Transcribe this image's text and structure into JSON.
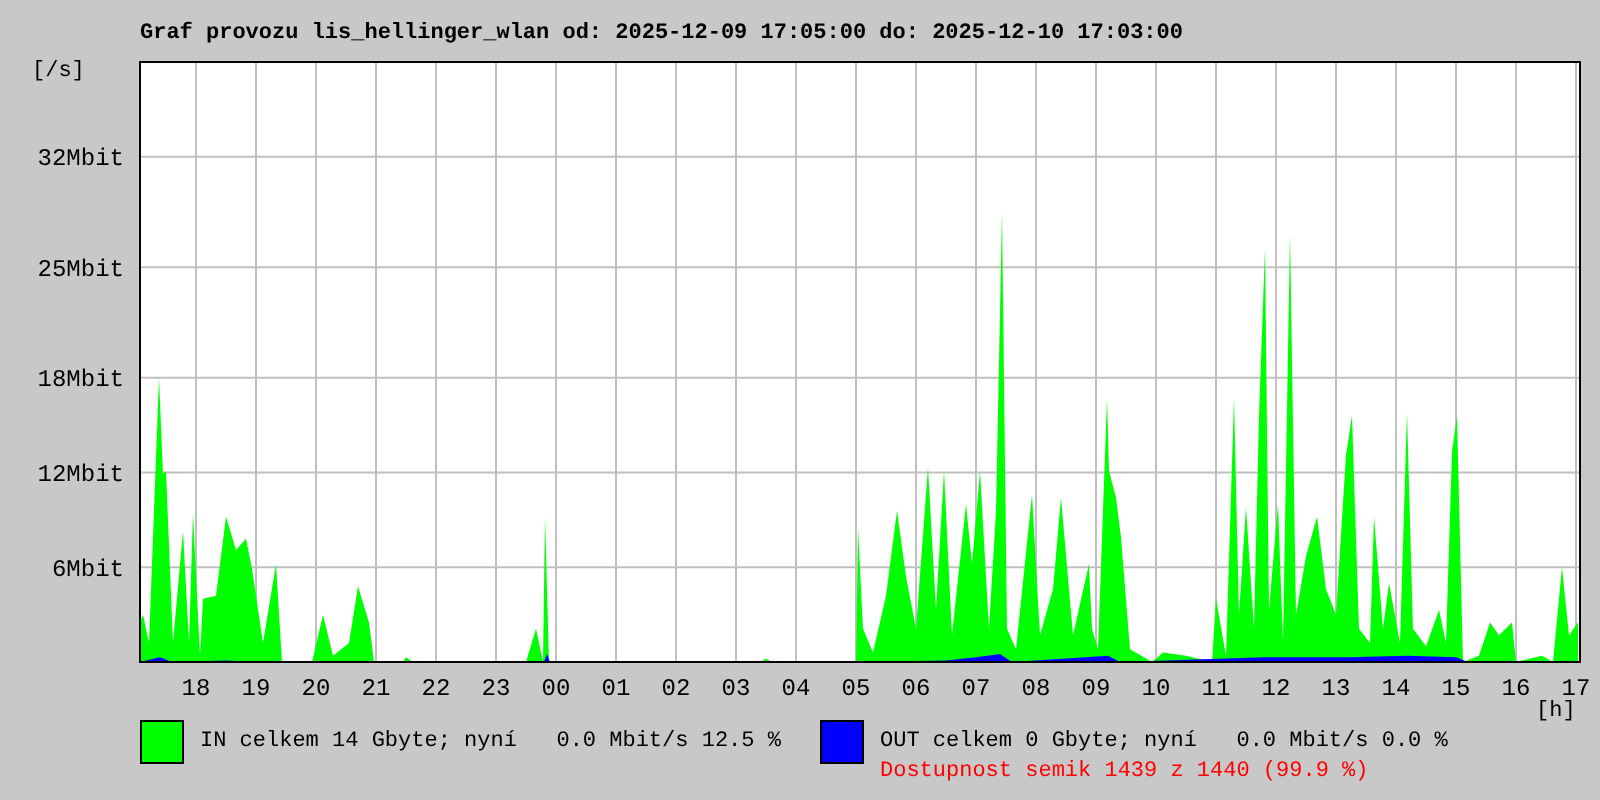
{
  "chart_data": {
    "type": "area",
    "title": "Graf provozu lis_hellinger_wlan od: 2025-12-09 17:05:00 do: 2025-12-10 17:03:00",
    "ylabel": "[/s]",
    "xlabel": "[h]",
    "xlim": [
      "2025-12-09T17:04",
      "2025-12-10T17:04"
    ],
    "xticks": [
      {
        "value": "2025-12-09T18:00",
        "label": "18"
      },
      {
        "value": "2025-12-09T19:00",
        "label": "19"
      },
      {
        "value": "2025-12-09T20:00",
        "label": "20"
      },
      {
        "value": "2025-12-09T21:00",
        "label": "21"
      },
      {
        "value": "2025-12-09T22:00",
        "label": "22"
      },
      {
        "value": "2025-12-09T23:00",
        "label": "23"
      },
      {
        "value": "2025-12-10T00:00",
        "label": "00"
      },
      {
        "value": "2025-12-10T01:00",
        "label": "01"
      },
      {
        "value": "2025-12-10T02:00",
        "label": "02"
      },
      {
        "value": "2025-12-10T03:00",
        "label": "03"
      },
      {
        "value": "2025-12-10T04:00",
        "label": "04"
      },
      {
        "value": "2025-12-10T05:00",
        "label": "05"
      },
      {
        "value": "2025-12-10T06:00",
        "label": "06"
      },
      {
        "value": "2025-12-10T07:00",
        "label": "07"
      },
      {
        "value": "2025-12-10T08:00",
        "label": "08"
      },
      {
        "value": "2025-12-10T09:00",
        "label": "09"
      },
      {
        "value": "2025-12-10T10:00",
        "label": "10"
      },
      {
        "value": "2025-12-10T11:00",
        "label": "11"
      },
      {
        "value": "2025-12-10T12:00",
        "label": "12"
      },
      {
        "value": "2025-12-10T13:00",
        "label": "13"
      },
      {
        "value": "2025-12-10T14:00",
        "label": "14"
      },
      {
        "value": "2025-12-10T15:00",
        "label": "15"
      },
      {
        "value": "2025-12-10T16:00",
        "label": "16"
      },
      {
        "value": "2025-12-10T17:00",
        "label": "17"
      }
    ],
    "ylim": [
      0,
      38
    ],
    "yticks": [
      {
        "value": 6,
        "label": "6Mbit"
      },
      {
        "value": 12,
        "label": "12Mbit"
      },
      {
        "value": 18,
        "label": "18Mbit"
      },
      {
        "value": 25,
        "label": "25Mbit"
      },
      {
        "value": 32,
        "label": "32Mbit"
      }
    ],
    "grid": true,
    "legend": "bottom",
    "annotations": [
      "Dostupnost semik 1439 z 1440 (99.9 %)"
    ],
    "series": [
      {
        "name": "IN celkem 14 Gbyte; nyní   0.0 Mbit/s 12.5 %",
        "color": "#00ff00",
        "x": [
          "2025-12-09T17:04",
          "2025-12-09T17:07",
          "2025-12-09T17:13",
          "2025-12-09T17:23",
          "2025-12-09T17:27",
          "2025-12-09T17:30",
          "2025-12-09T17:37",
          "2025-12-09T17:47",
          "2025-12-09T17:53",
          "2025-12-09T17:57",
          "2025-12-09T18:04",
          "2025-12-09T18:07",
          "2025-12-09T18:20",
          "2025-12-09T18:30",
          "2025-12-09T18:40",
          "2025-12-09T18:50",
          "2025-12-09T18:56",
          "2025-12-09T19:07",
          "2025-12-09T19:20",
          "2025-12-09T19:26",
          "2025-12-09T19:56",
          "2025-12-09T20:07",
          "2025-12-09T20:17",
          "2025-12-09T20:33",
          "2025-12-09T20:42",
          "2025-12-09T20:53",
          "2025-12-09T20:58",
          "2025-12-09T21:27",
          "2025-12-09T21:30",
          "2025-12-09T21:37",
          "2025-12-09T23:30",
          "2025-12-09T23:40",
          "2025-12-09T23:47",
          "2025-12-09T23:49",
          "2025-12-09T23:53",
          "2025-12-10T03:24",
          "2025-12-10T03:30",
          "2025-12-10T03:36",
          "2025-12-10T05:00",
          "2025-12-10T05:02",
          "2025-12-10T05:07",
          "2025-12-10T05:17",
          "2025-12-10T05:30",
          "2025-12-10T05:41",
          "2025-12-10T05:50",
          "2025-12-10T06:00",
          "2025-12-10T06:12",
          "2025-12-10T06:20",
          "2025-12-10T06:28",
          "2025-12-10T06:36",
          "2025-12-10T06:50",
          "2025-12-10T06:56",
          "2025-12-10T07:04",
          "2025-12-10T07:13",
          "2025-12-10T07:20",
          "2025-12-10T07:26",
          "2025-12-10T07:31",
          "2025-12-10T07:40",
          "2025-12-10T07:56",
          "2025-12-10T08:04",
          "2025-12-10T08:17",
          "2025-12-10T08:25",
          "2025-12-10T08:37",
          "2025-12-10T08:53",
          "2025-12-10T08:56",
          "2025-12-10T09:02",
          "2025-12-10T09:11",
          "2025-12-10T09:13",
          "2025-12-10T09:20",
          "2025-12-10T09:25",
          "2025-12-10T09:34",
          "2025-12-10T09:56",
          "2025-12-10T10:07",
          "2025-12-10T10:30",
          "2025-12-10T10:56",
          "2025-12-10T11:00",
          "2025-12-10T11:10",
          "2025-12-10T11:18",
          "2025-12-10T11:23",
          "2025-12-10T11:30",
          "2025-12-10T11:38",
          "2025-12-10T11:43",
          "2025-12-10T11:49",
          "2025-12-10T11:53",
          "2025-12-10T12:02",
          "2025-12-10T12:07",
          "2025-12-10T12:14",
          "2025-12-10T12:20",
          "2025-12-10T12:30",
          "2025-12-10T12:41",
          "2025-12-10T12:50",
          "2025-12-10T13:00",
          "2025-12-10T13:10",
          "2025-12-10T13:16",
          "2025-12-10T13:23",
          "2025-12-10T13:34",
          "2025-12-10T13:38",
          "2025-12-10T13:47",
          "2025-12-10T13:53",
          "2025-12-10T14:04",
          "2025-12-10T14:11",
          "2025-12-10T14:17",
          "2025-12-10T14:30",
          "2025-12-10T14:43",
          "2025-12-10T14:50",
          "2025-12-10T14:56",
          "2025-12-10T15:01",
          "2025-12-10T15:07",
          "2025-12-10T15:23",
          "2025-12-10T15:34",
          "2025-12-10T15:43",
          "2025-12-10T15:56",
          "2025-12-10T16:00",
          "2025-12-10T16:26",
          "2025-12-10T16:37",
          "2025-12-10T16:46",
          "2025-12-10T16:53",
          "2025-12-10T17:02"
        ],
        "values": [
          2.5,
          3.0,
          1.2,
          18.0,
          11.9,
          12.1,
          1.2,
          8.3,
          1.2,
          9.4,
          0.4,
          4.0,
          4.2,
          9.2,
          7.1,
          7.8,
          5.9,
          1.2,
          6.2,
          0,
          0,
          3.0,
          0.4,
          1.2,
          4.8,
          2.5,
          0,
          0,
          0.3,
          0,
          0,
          2.1,
          0,
          9.2,
          0,
          0,
          0.2,
          0,
          0,
          8.5,
          2.1,
          0.6,
          4.2,
          9.6,
          5.4,
          2.1,
          12.3,
          3.3,
          12.1,
          1.7,
          10.0,
          6.2,
          12.1,
          2.1,
          9.6,
          28.5,
          2.1,
          0.8,
          10.6,
          1.7,
          4.6,
          10.4,
          1.7,
          6.2,
          2.1,
          0.8,
          16.7,
          12.1,
          10.4,
          7.9,
          0.8,
          0,
          0.6,
          0.4,
          0,
          4.0,
          0.4,
          16.7,
          3.0,
          9.8,
          2.1,
          15.6,
          26.2,
          3.3,
          10.0,
          1.2,
          27.1,
          3.0,
          6.7,
          9.2,
          4.6,
          3.0,
          13.1,
          15.6,
          2.1,
          1.2,
          9.2,
          2.1,
          5.0,
          1.2,
          15.8,
          2.1,
          1.0,
          3.3,
          1.2,
          13.3,
          15.6,
          0,
          0.4,
          2.5,
          1.7,
          2.5,
          0,
          0.4,
          0,
          6.0,
          1.7,
          2.5
        ]
      },
      {
        "name": "OUT celkem 0 Gbyte; nyní   0.0 Mbit/s 0.0 %",
        "color": "#0000ff",
        "x": [
          "2025-12-09T17:04",
          "2025-12-09T17:24",
          "2025-12-09T17:36",
          "2025-12-09T18:30",
          "2025-12-09T19:00",
          "2025-12-09T23:48",
          "2025-12-09T23:51",
          "2025-12-09T23:54",
          "2025-12-10T05:00",
          "2025-12-10T06:30",
          "2025-12-10T07:00",
          "2025-12-10T07:24",
          "2025-12-10T07:36",
          "2025-12-10T09:12",
          "2025-12-10T09:24",
          "2025-12-10T11:48",
          "2025-12-10T12:12",
          "2025-12-10T13:12",
          "2025-12-10T14:12",
          "2025-12-10T15:00",
          "2025-12-10T15:12",
          "2025-12-10T17:03"
        ],
        "values": [
          0,
          0.3,
          0,
          0.1,
          0,
          0,
          0.5,
          0,
          0,
          0.1,
          0.3,
          0.5,
          0,
          0.4,
          0,
          0.3,
          0.3,
          0.3,
          0.4,
          0.3,
          0,
          0
        ]
      }
    ]
  }
}
